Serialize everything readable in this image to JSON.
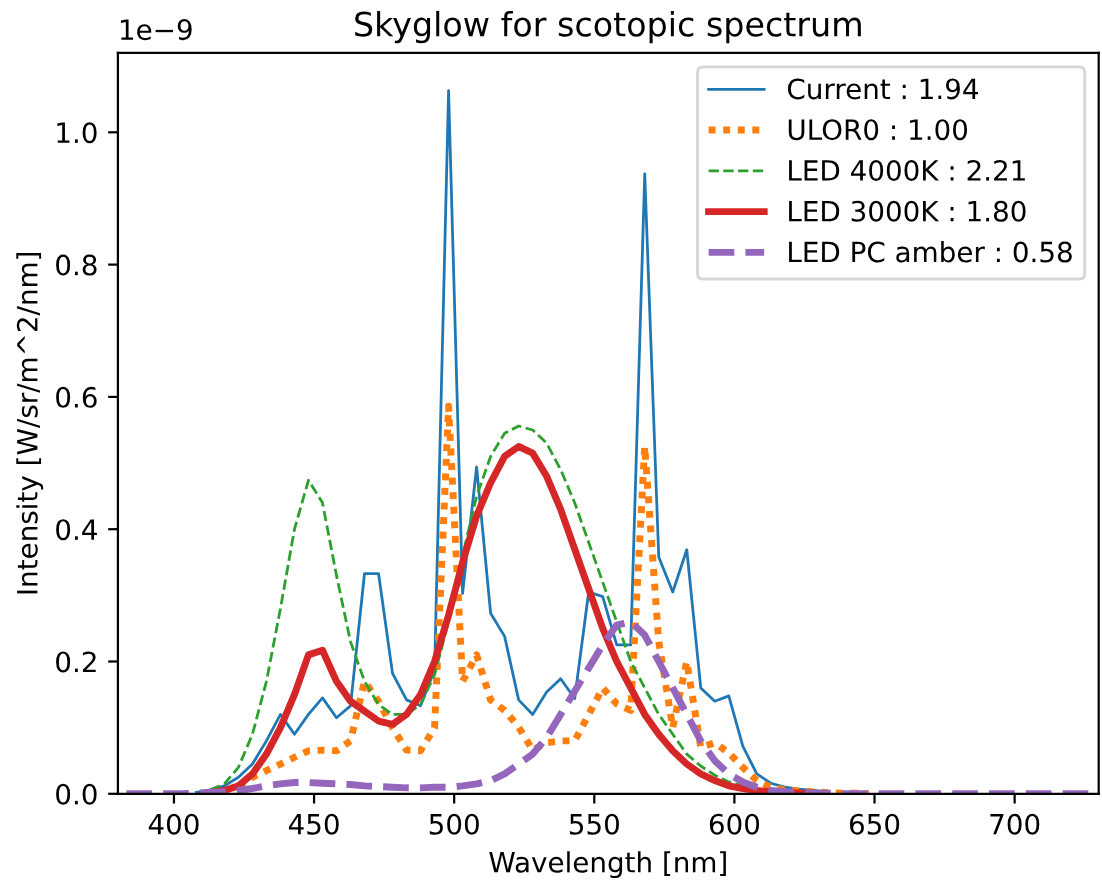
{
  "chart_data": {
    "type": "line",
    "title": "Skyglow for scotopic spectrum",
    "xlabel": "Wavelength [nm]",
    "ylabel": "Intensity [W/sr/m^2/nm]",
    "annotations": [
      "1e−9"
    ],
    "x": [
      383,
      388,
      393,
      398,
      403,
      408,
      413,
      418,
      423,
      428,
      433,
      438,
      443,
      448,
      453,
      458,
      463,
      468,
      473,
      478,
      483,
      488,
      493,
      498,
      503,
      508,
      513,
      518,
      523,
      528,
      533,
      538,
      543,
      548,
      553,
      558,
      563,
      568,
      573,
      578,
      583,
      588,
      593,
      598,
      603,
      608,
      613,
      618,
      623,
      628,
      633,
      638,
      643,
      648,
      653,
      658,
      663,
      668,
      673,
      678,
      683,
      688,
      693,
      698,
      703,
      708,
      713,
      718,
      723,
      728
    ],
    "series": [
      {
        "name": "Current : 1.94",
        "color": "#1f77b4",
        "line_style": "solid",
        "values": [
          null,
          null,
          null,
          null,
          null,
          0.002,
          0.006,
          0.012,
          0.025,
          0.045,
          0.08,
          0.12,
          0.09,
          0.12,
          0.145,
          0.115,
          0.133,
          0.333,
          0.333,
          0.182,
          0.142,
          0.133,
          0.187,
          1.063,
          0.303,
          0.494,
          0.273,
          0.238,
          0.142,
          0.12,
          0.154,
          0.174,
          0.144,
          0.305,
          0.298,
          0.225,
          0.225,
          0.937,
          0.358,
          0.305,
          0.369,
          0.16,
          0.14,
          0.148,
          0.072,
          0.03,
          0.016,
          0.01,
          0.007,
          0.005,
          0.003,
          null,
          null,
          null,
          null,
          null,
          null,
          null,
          null,
          null,
          null,
          null,
          null,
          null,
          null,
          null,
          null,
          null,
          null,
          null
        ]
      },
      {
        "name": "ULOR0 : 1.00",
        "color": "#ff7f0e",
        "line_style": "dotted",
        "values": [
          null,
          null,
          null,
          null,
          null,
          null,
          null,
          null,
          0.012,
          0.025,
          0.035,
          0.045,
          0.055,
          0.065,
          0.066,
          0.065,
          0.08,
          0.17,
          0.14,
          0.1,
          0.066,
          0.065,
          0.1,
          0.586,
          0.17,
          0.21,
          0.142,
          0.126,
          0.101,
          0.066,
          0.077,
          0.08,
          0.08,
          0.12,
          0.16,
          0.136,
          0.126,
          0.525,
          0.23,
          0.1,
          0.2,
          0.07,
          0.077,
          0.062,
          0.04,
          0.02,
          0.01,
          0.006,
          0.004,
          0.003,
          0.002,
          0.001,
          0.001,
          0,
          null,
          null,
          null,
          null,
          null,
          null,
          null,
          null,
          null,
          null,
          null,
          null,
          null,
          null,
          null,
          null
        ]
      },
      {
        "name": "LED 4000K : 2.21",
        "color": "#2ca02c",
        "line_style": "dashed",
        "values": [
          null,
          null,
          null,
          null,
          null,
          null,
          0.006,
          0.015,
          0.04,
          0.09,
          0.17,
          0.28,
          0.4,
          0.474,
          0.44,
          0.33,
          0.23,
          0.17,
          0.135,
          0.12,
          0.12,
          0.135,
          0.18,
          0.26,
          0.36,
          0.45,
          0.51,
          0.545,
          0.556,
          0.55,
          0.53,
          0.49,
          0.44,
          0.38,
          0.32,
          0.26,
          0.2,
          0.16,
          0.12,
          0.09,
          0.06,
          0.042,
          0.028,
          0.018,
          0.012,
          null,
          null,
          null,
          null,
          null,
          null,
          null,
          null,
          null,
          null,
          null,
          null,
          null,
          null,
          null,
          null,
          null,
          null,
          null,
          null,
          null,
          null,
          null,
          null,
          null
        ]
      },
      {
        "name": "LED 3000K : 1.80",
        "color": "#d62728",
        "line_style": "solid",
        "values": [
          null,
          null,
          null,
          null,
          null,
          null,
          0.002,
          0.005,
          0.012,
          0.03,
          0.06,
          0.1,
          0.15,
          0.21,
          0.217,
          0.17,
          0.14,
          0.125,
          0.11,
          0.105,
          0.12,
          0.15,
          0.2,
          0.27,
          0.35,
          0.42,
          0.47,
          0.51,
          0.525,
          0.515,
          0.48,
          0.43,
          0.37,
          0.31,
          0.25,
          0.2,
          0.16,
          0.12,
          0.09,
          0.065,
          0.045,
          0.03,
          0.02,
          0.012,
          0.008,
          0.005,
          0.003,
          0.002,
          0.001,
          0.001,
          null,
          null,
          null,
          null,
          null,
          null,
          null,
          null,
          null,
          null,
          null,
          null,
          null,
          null,
          null,
          null,
          null,
          null,
          null,
          null
        ]
      },
      {
        "name": "LED PC amber : 0.58",
        "color": "#9467bd",
        "line_style": "dashed",
        "values": [
          0,
          0,
          0,
          0,
          0,
          0.001,
          0.002,
          0.003,
          0.005,
          0.008,
          0.012,
          0.015,
          0.017,
          0.017,
          0.016,
          0.015,
          0.014,
          0.012,
          0.011,
          0.01,
          0.009,
          0.009,
          0.01,
          0.01,
          0.012,
          0.015,
          0.02,
          0.03,
          0.045,
          0.06,
          0.085,
          0.12,
          0.155,
          0.19,
          0.225,
          0.255,
          0.26,
          0.24,
          0.2,
          0.16,
          0.12,
          0.08,
          0.05,
          0.03,
          0.018,
          0.01,
          0.005,
          0.003,
          0.002,
          0.001,
          0.001,
          0,
          0,
          0,
          0,
          0,
          0,
          0,
          0,
          0,
          0,
          0,
          0,
          0,
          0,
          0,
          0,
          0,
          0,
          0
        ]
      }
    ],
    "xlim": [
      380,
      730
    ],
    "xticks": [
      400,
      450,
      500,
      550,
      600,
      650,
      700
    ],
    "ylim": [
      0,
      1.12
    ],
    "yticks": [
      {
        "value": 0,
        "label": "0.0"
      },
      0.2,
      0.4,
      0.6,
      0.8,
      {
        "value": 1,
        "label": "1.0"
      }
    ],
    "legend": "top right",
    "grid": false,
    "marker": "none"
  }
}
